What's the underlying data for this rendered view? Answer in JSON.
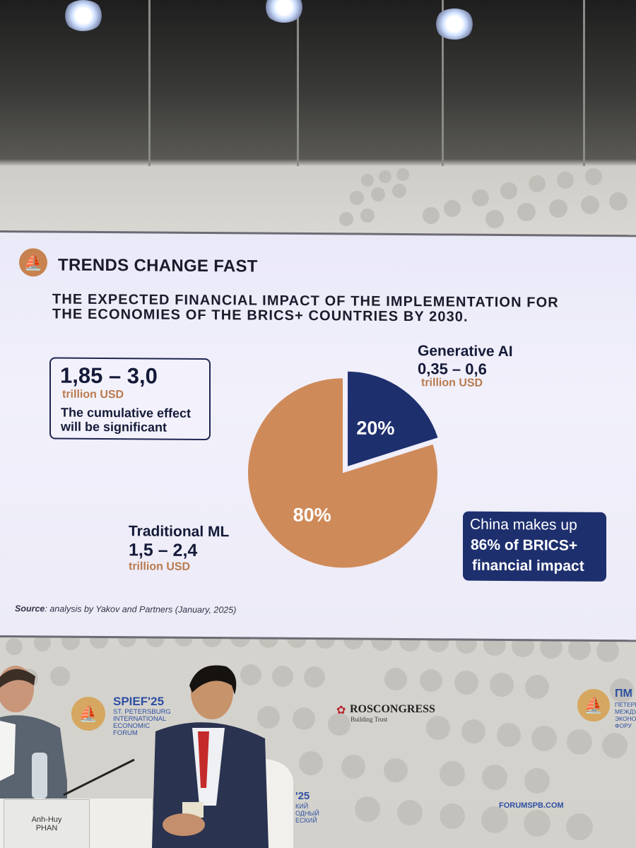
{
  "slide": {
    "title": "TRENDS CHANGE FAST",
    "subtitle_line1": "THE EXPECTED FINANCIAL IMPACT OF THE IMPLEMENTATION FOR",
    "subtitle_line2": "THE ECONOMIES OF THE BRICS+ COUNTRIES BY 2030.",
    "total": {
      "range": "1,85 – 3,0",
      "unit": "trillion USD",
      "desc_line1": "The cumulative effect",
      "desc_line2": "will be significant"
    },
    "generative": {
      "name": "Generative AI",
      "range": "0,35 – 0,6",
      "unit": "trillion USD"
    },
    "traditional": {
      "name": "Traditional ML",
      "range": "1,5 – 2,4",
      "unit": "trillion USD"
    },
    "china": {
      "line1": "China makes up",
      "line2": "86% of BRICS+",
      "line3": "financial impact"
    },
    "source_label": "Source",
    "source_text": ": analysis by Yakov and Partners (January, 2025)"
  },
  "chart_data": {
    "type": "pie",
    "slices": [
      {
        "label": "20%",
        "value": 20,
        "color": "#1e2f6e"
      },
      {
        "label": "80%",
        "value": 80,
        "color": "#cf8a59"
      }
    ]
  },
  "backdrop": {
    "spief_title": "SPIEF'25",
    "spief_line1": "ST. PETERSBURG",
    "spief_line2": "INTERNATIONAL",
    "spief_line3": "ECONOMIC",
    "spief_line4": "FORUM",
    "roscongress": "ROSCONGRESS",
    "roscongress_tag": "Building Trust",
    "forum_url": "FORUMSPB.COM",
    "pmef_title": "ПМ",
    "pmef_line1": "ПЕТЕРБ",
    "pmef_line2": "МЕЖДУ",
    "pmef_line3": "ЭКОНО",
    "pmef_line4": "ФОРУ",
    "mid_year": "'25",
    "mid_line1": "КИЙ",
    "mid_line2": "ОДНЫЙ",
    "mid_line3": "ЕСКИЙ"
  },
  "nameplate": {
    "first": "Anh-Huy",
    "last": "PHAN"
  }
}
